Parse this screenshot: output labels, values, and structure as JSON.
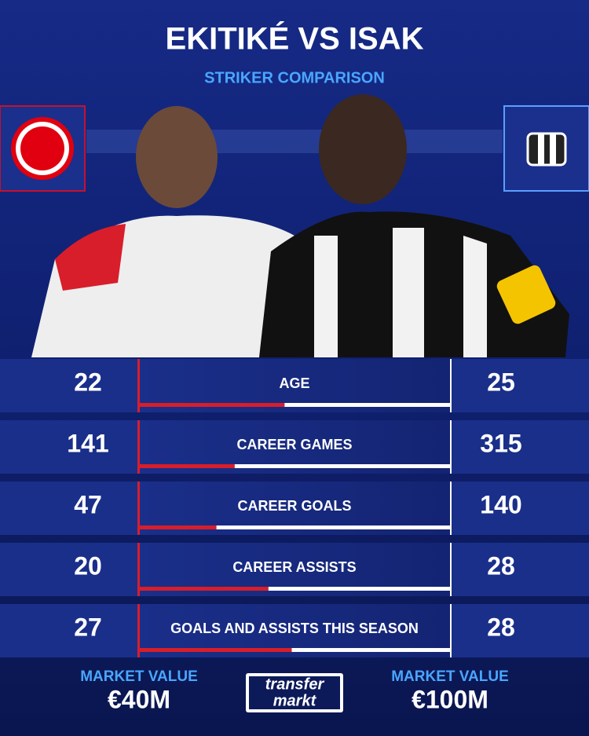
{
  "header": {
    "title": "EKITIKÉ VS ISAK",
    "subtitle": "STRIKER COMPARISON"
  },
  "rows": [
    {
      "label": "AGE",
      "left": 22,
      "right": 25
    },
    {
      "label": "CAREER GAMES",
      "left": 141,
      "right": 315
    },
    {
      "label": "CAREER GOALS",
      "left": 47,
      "right": 140
    },
    {
      "label": "CAREER ASSISTS",
      "left": 20,
      "right": 28
    },
    {
      "label": "GOALS AND ASSISTS THIS SEASON",
      "left": 27,
      "right": 28
    }
  ],
  "footer": {
    "left": {
      "label": "MARKET VALUE",
      "value": "€40M"
    },
    "right": {
      "label": "MARKET VALUE",
      "value": "€100M"
    },
    "logo": {
      "top": "transfer",
      "bottom": "markt"
    }
  }
}
